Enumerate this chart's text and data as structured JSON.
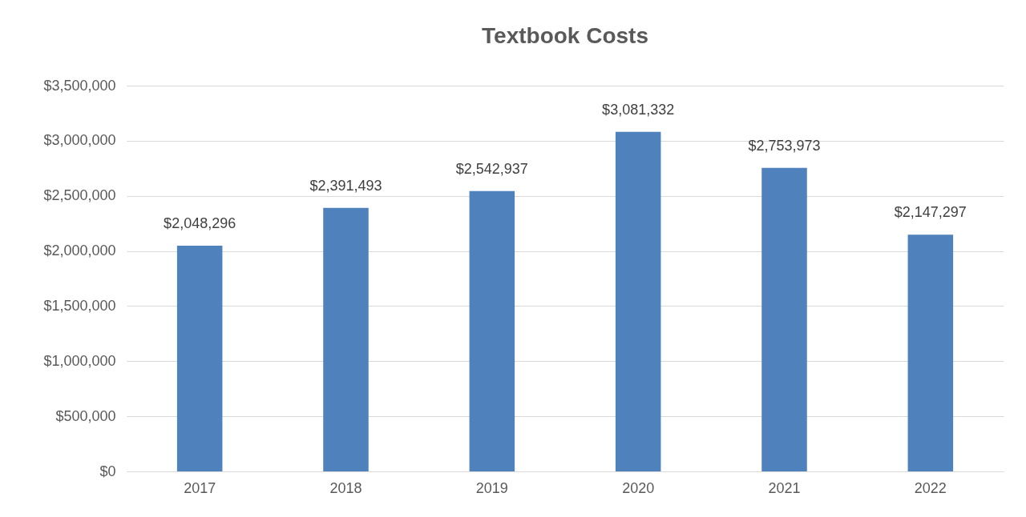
{
  "chart_data": {
    "type": "bar",
    "title": "Textbook Costs",
    "categories": [
      "2017",
      "2018",
      "2019",
      "2020",
      "2021",
      "2022"
    ],
    "values": [
      2048296,
      2391493,
      2542937,
      3081332,
      2753973,
      2147297
    ],
    "value_labels": [
      "$2,048,296",
      "$2,391,493",
      "$2,542,937",
      "$3,081,332",
      "$2,753,973",
      "$2,147,297"
    ],
    "color": "#4f81bd",
    "ylim": [
      0,
      3500000
    ],
    "yticks": [
      {
        "value": 0,
        "label": "$0"
      },
      {
        "value": 500000,
        "label": "$500,000"
      },
      {
        "value": 1000000,
        "label": "$1,000,000"
      },
      {
        "value": 1500000,
        "label": "$1,500,000"
      },
      {
        "value": 2000000,
        "label": "$2,000,000"
      },
      {
        "value": 2500000,
        "label": "$2,500,000"
      },
      {
        "value": 3000000,
        "label": "$3,000,000"
      },
      {
        "value": 3500000,
        "label": "$3,500,000"
      }
    ],
    "grid": true
  }
}
